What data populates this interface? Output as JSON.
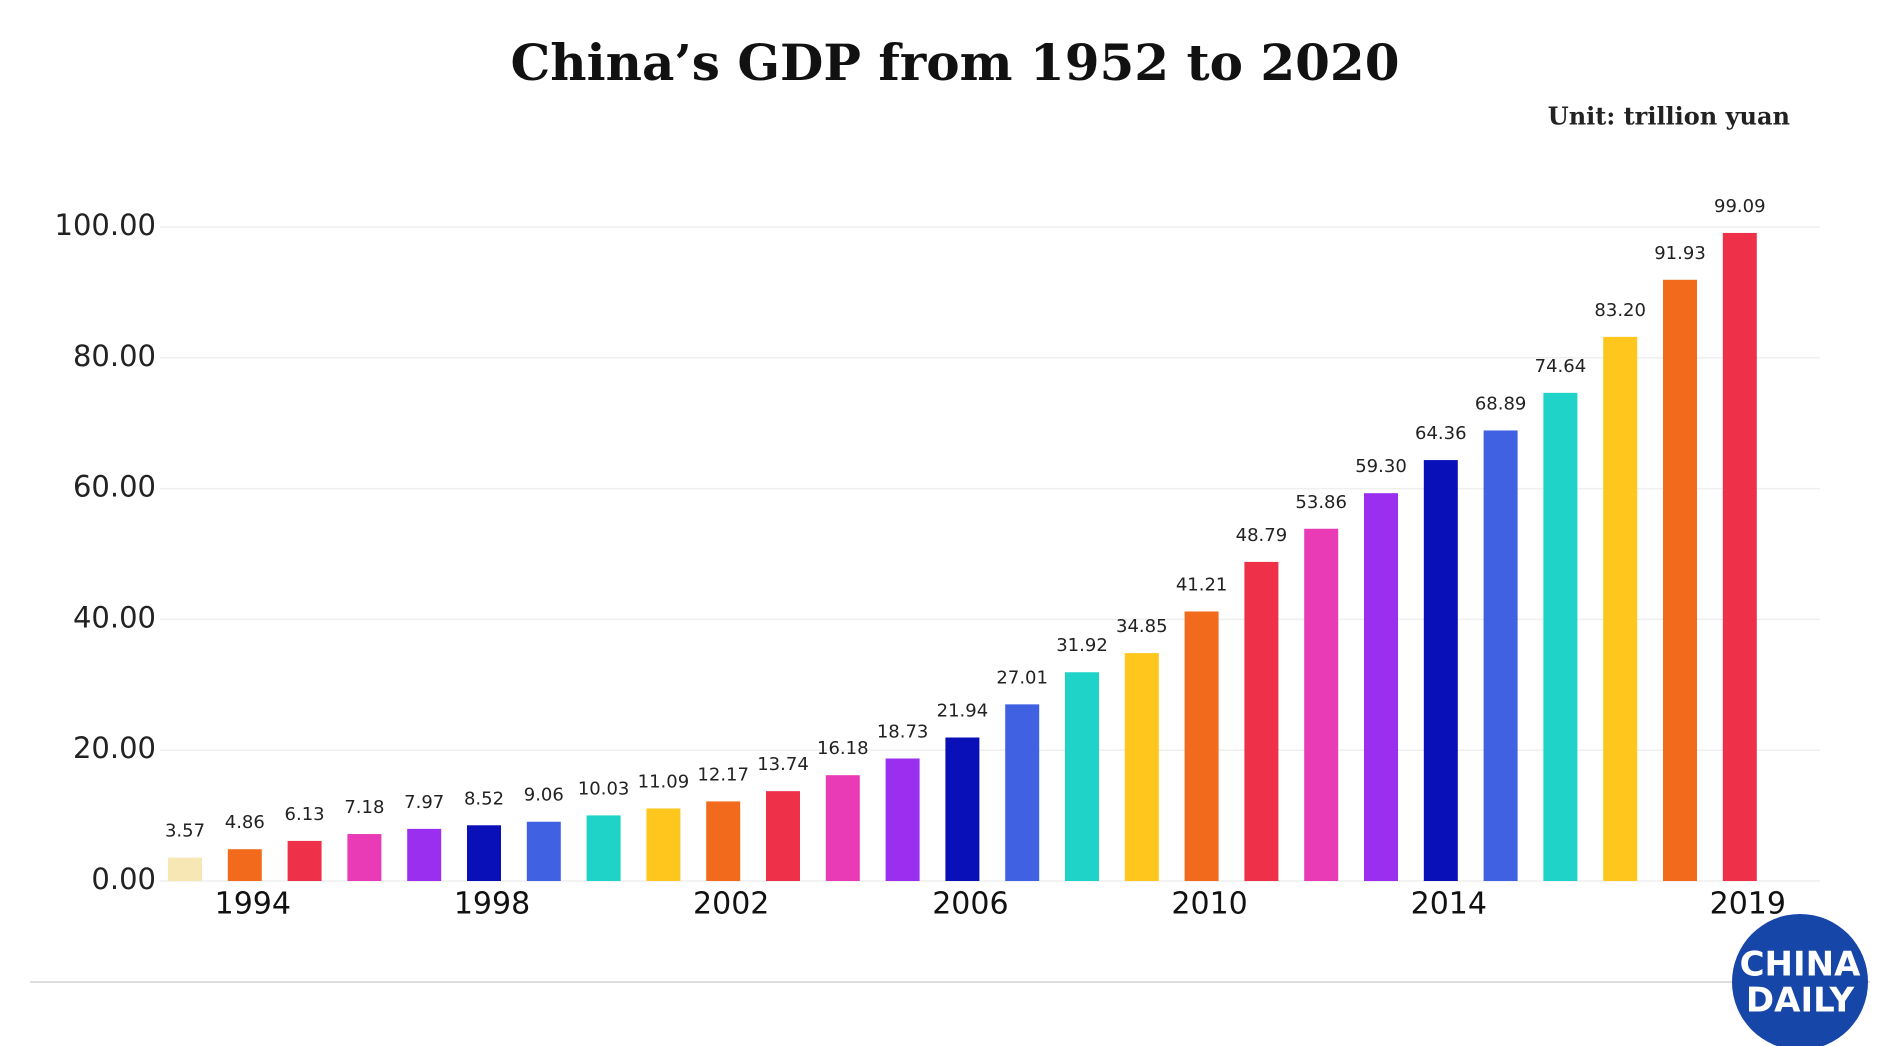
{
  "chart_data": {
    "type": "bar",
    "title": "China’s GDP from 1952 to 2020",
    "subtitle": "Unit: trillion yuan",
    "categories": [
      null,
      "1994",
      null,
      null,
      null,
      "1998",
      null,
      null,
      null,
      "2002",
      null,
      null,
      null,
      "2006",
      null,
      null,
      null,
      "2010",
      null,
      null,
      null,
      "2014",
      null,
      null,
      null,
      null,
      "2019"
    ],
    "values": [
      3.57,
      4.86,
      6.13,
      7.18,
      7.97,
      8.52,
      9.06,
      10.03,
      11.09,
      12.17,
      13.74,
      16.18,
      18.73,
      21.94,
      27.01,
      31.92,
      34.85,
      41.21,
      48.79,
      53.86,
      59.3,
      64.36,
      68.89,
      74.64,
      83.2,
      91.93,
      99.09
    ],
    "value_labels": [
      "3.57",
      "4.86",
      "6.13",
      "7.18",
      "7.97",
      "8.52",
      "9.06",
      "10.03",
      "11.09",
      "12.17",
      "13.74",
      "16.18",
      "18.73",
      "21.94",
      "27.01",
      "31.92",
      "34.85",
      "41.21",
      "48.79",
      "53.86",
      "59.30",
      "64.36",
      "68.89",
      "74.64",
      "83.20",
      "91.93",
      "99.09"
    ],
    "colors": [
      "#f7e7b4",
      "#f26a1b",
      "#ee3148",
      "#e93bb5",
      "#9b2ff0",
      "#0a10b8",
      "#4062e2",
      "#1fd3c8",
      "#ffc61e",
      "#f26a1b",
      "#ee3148",
      "#e93bb5",
      "#9b2ff0",
      "#0a10b8",
      "#4062e2",
      "#1fd3c8",
      "#ffc61e",
      "#f26a1b",
      "#ee3148",
      "#e93bb5",
      "#9b2ff0",
      "#0a10b8",
      "#4062e2",
      "#1fd3c8",
      "#ffc61e",
      "#f26a1b",
      "#ee3148"
    ],
    "ylim": [
      0,
      100
    ],
    "yticks": [
      {
        "value": 0,
        "label": "0.00"
      },
      {
        "value": 20,
        "label": "20.00"
      },
      {
        "value": 40,
        "label": "40.00"
      },
      {
        "value": 60,
        "label": "60.00"
      },
      {
        "value": 80,
        "label": "80.00"
      },
      {
        "value": 100,
        "label": "100.00"
      }
    ],
    "grid": true,
    "logo": [
      "CHINA",
      "DAILY"
    ]
  }
}
